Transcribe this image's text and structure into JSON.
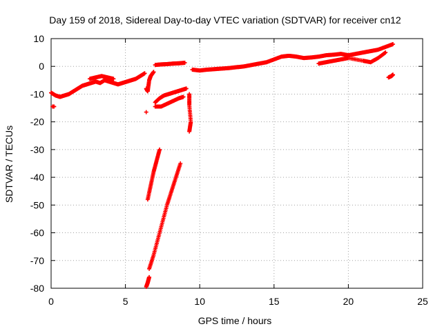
{
  "chart_data": {
    "type": "scatter",
    "title": "Day 159 of 2018, Sidereal Day-to-day VTEC variation (SDTVAR) for receiver cn12",
    "xlabel": "GPS time / hours",
    "ylabel": "SDTVAR / TECUs",
    "xlim": [
      0,
      25
    ],
    "ylim": [
      -80,
      10
    ],
    "xticks": [
      0,
      5,
      10,
      15,
      20,
      25
    ],
    "yticks": [
      -80,
      -70,
      -60,
      -50,
      -40,
      -30,
      -20,
      -10,
      0,
      10
    ],
    "grid": true,
    "marker": "+",
    "color": "#ff0000",
    "series": [
      {
        "name": "early-isolated",
        "x": [
          0.1,
          0.2
        ],
        "y": [
          -14.5,
          -14.5
        ]
      },
      {
        "name": "main-trace-0-6h",
        "x": [
          0.0,
          0.3,
          0.6,
          0.9,
          1.2,
          1.5,
          1.8,
          2.1,
          2.4,
          2.7,
          3.0,
          3.3,
          3.6,
          3.9,
          4.2,
          4.5,
          4.8,
          5.1,
          5.4,
          5.7,
          6.0,
          6.3
        ],
        "y": [
          -9.5,
          -10.5,
          -11,
          -10.5,
          -10,
          -9,
          -8,
          -7,
          -6.5,
          -6,
          -5.5,
          -6,
          -5,
          -5.5,
          -6,
          -6.5,
          -6,
          -5.5,
          -5,
          -4.5,
          -3.5,
          -2.5
        ]
      },
      {
        "name": "upper-branch-2.5-4.5h",
        "x": [
          2.6,
          3.0,
          3.4,
          3.8,
          4.2
        ],
        "y": [
          -4.5,
          -4,
          -3.5,
          -4,
          -4.5
        ]
      },
      {
        "name": "segment-7-9h-top",
        "x": [
          7.0,
          7.4,
          7.8,
          8.2,
          8.6,
          9.0
        ],
        "y": [
          0.5,
          0.7,
          0.8,
          1,
          1.1,
          1.3
        ]
      },
      {
        "name": "scatter-6.5-7h",
        "x": [
          6.4,
          6.5,
          6.6,
          6.7,
          6.9
        ],
        "y": [
          -8,
          -9,
          -5,
          -3.5,
          -2
        ]
      },
      {
        "name": "segment-7-9h-lower-a",
        "x": [
          7.0,
          7.3,
          7.6,
          7.9,
          8.2,
          8.5,
          8.8,
          9.1
        ],
        "y": [
          -13,
          -11.5,
          -10.5,
          -10,
          -9.5,
          -9,
          -8.5,
          -8
        ]
      },
      {
        "name": "segment-7-9h-lower-b",
        "x": [
          7.0,
          7.4,
          7.8,
          8.2,
          8.6,
          8.9
        ],
        "y": [
          -14.5,
          -14.5,
          -13.5,
          -12.5,
          -11.5,
          -11
        ]
      },
      {
        "name": "isolated-6.4h",
        "x": [
          6.4
        ],
        "y": [
          -16.5
        ]
      },
      {
        "name": "drops-9.2-9.5h",
        "x": [
          9.3,
          9.3,
          9.4,
          9.3
        ],
        "y": [
          -10,
          -14,
          -20,
          -23.5
        ]
      },
      {
        "name": "steep-descent-a",
        "x": [
          6.5,
          6.7,
          6.9,
          7.1,
          7.3
        ],
        "y": [
          -48,
          -43,
          -38,
          -34,
          -30
        ]
      },
      {
        "name": "steep-descent-b",
        "x": [
          6.6,
          6.9,
          7.2,
          7.5,
          7.8,
          8.1,
          8.4,
          8.7
        ],
        "y": [
          -73,
          -68,
          -62,
          -56,
          -50,
          -45,
          -40,
          -35
        ]
      },
      {
        "name": "bottom-cluster",
        "x": [
          6.4,
          6.5,
          6.6
        ],
        "y": [
          -79.5,
          -78,
          -76
        ]
      },
      {
        "name": "main-trace-9.5-23h",
        "x": [
          9.5,
          10.0,
          10.5,
          11.0,
          11.5,
          12.0,
          12.5,
          13.0,
          13.5,
          14.0,
          14.5,
          15.0,
          15.5,
          16.0,
          16.5,
          17.0,
          17.5,
          18.0,
          18.5,
          19.0,
          19.5,
          20.0,
          20.5,
          21.0,
          21.5,
          22.0,
          22.5,
          23.0
        ],
        "y": [
          -1.2,
          -1.5,
          -1.2,
          -1,
          -0.8,
          -0.6,
          -0.3,
          0,
          0.5,
          1,
          1.5,
          2.5,
          3.5,
          3.8,
          3.5,
          3,
          3.2,
          3.5,
          4,
          4.2,
          4.5,
          4,
          4.5,
          5,
          5.5,
          6,
          7,
          8
        ]
      },
      {
        "name": "lower-branch-18-22h",
        "x": [
          18.0,
          18.5,
          19.0,
          19.5,
          20.0,
          21.0,
          21.5,
          22.0,
          22.5
        ],
        "y": [
          1,
          1.5,
          2,
          2.5,
          3,
          2,
          1.5,
          3,
          5
        ]
      },
      {
        "name": "isolated-23h",
        "x": [
          22.7,
          22.9,
          23.0
        ],
        "y": [
          -4,
          -3.5,
          -3
        ]
      }
    ]
  }
}
